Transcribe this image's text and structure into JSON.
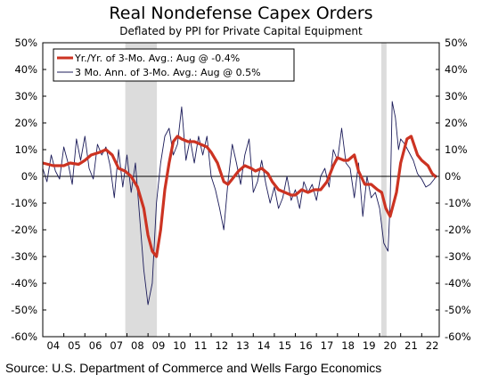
{
  "chart_data": {
    "type": "line",
    "title": "Real Nondefense Capex Orders",
    "subtitle": "Deflated by PPI for Private Capital Equipment",
    "source": "Source: U.S. Department of Commerce and Wells Fargo Economics",
    "ylim": [
      -60,
      50
    ],
    "xlim": [
      2004,
      2022.75
    ],
    "y_tick_labels": [
      "50%",
      "40%",
      "30%",
      "20%",
      "10%",
      "0%",
      "-10%",
      "-20%",
      "-30%",
      "-40%",
      "-50%",
      "-60%"
    ],
    "y_ticks": [
      50,
      40,
      30,
      20,
      10,
      0,
      -10,
      -20,
      -30,
      -40,
      -50,
      -60
    ],
    "x_tick_labels": [
      "04",
      "05",
      "06",
      "07",
      "08",
      "09",
      "10",
      "11",
      "12",
      "13",
      "14",
      "15",
      "16",
      "17",
      "18",
      "19",
      "20",
      "21",
      "22"
    ],
    "recessions": [
      [
        2007.92,
        2009.42
      ],
      [
        2020.08,
        2020.33
      ]
    ],
    "colors": {
      "series_1": "#cc3322",
      "series_2": "#1c1c5a",
      "recession": "#dcdcdc"
    },
    "legend_position": "top-left",
    "series": [
      {
        "name": "Yr./Yr. of 3-Mo. Avg.: Aug @ -0.4%",
        "points": [
          [
            2004.0,
            5
          ],
          [
            2004.5,
            4
          ],
          [
            2005.0,
            4
          ],
          [
            2005.3,
            5
          ],
          [
            2005.7,
            4.5
          ],
          [
            2006.0,
            6
          ],
          [
            2006.3,
            8
          ],
          [
            2006.7,
            9
          ],
          [
            2007.0,
            10
          ],
          [
            2007.3,
            8
          ],
          [
            2007.6,
            3
          ],
          [
            2007.9,
            2
          ],
          [
            2008.2,
            0
          ],
          [
            2008.5,
            -4
          ],
          [
            2008.8,
            -12
          ],
          [
            2009.0,
            -22
          ],
          [
            2009.2,
            -28
          ],
          [
            2009.4,
            -30
          ],
          [
            2009.6,
            -20
          ],
          [
            2009.8,
            -5
          ],
          [
            2010.0,
            5
          ],
          [
            2010.2,
            13
          ],
          [
            2010.4,
            15
          ],
          [
            2010.6,
            14
          ],
          [
            2010.9,
            13
          ],
          [
            2011.2,
            13
          ],
          [
            2011.5,
            12
          ],
          [
            2011.8,
            11
          ],
          [
            2012.0,
            9
          ],
          [
            2012.3,
            5
          ],
          [
            2012.6,
            -2
          ],
          [
            2012.8,
            -3
          ],
          [
            2013.0,
            -1
          ],
          [
            2013.3,
            2
          ],
          [
            2013.6,
            4
          ],
          [
            2013.9,
            3
          ],
          [
            2014.1,
            2
          ],
          [
            2014.4,
            3
          ],
          [
            2014.7,
            1
          ],
          [
            2014.9,
            -2
          ],
          [
            2015.2,
            -5
          ],
          [
            2015.5,
            -6
          ],
          [
            2015.8,
            -7
          ],
          [
            2016.0,
            -7
          ],
          [
            2016.3,
            -5
          ],
          [
            2016.6,
            -6
          ],
          [
            2016.9,
            -5
          ],
          [
            2017.2,
            -5
          ],
          [
            2017.5,
            -2
          ],
          [
            2017.8,
            4
          ],
          [
            2018.0,
            7
          ],
          [
            2018.3,
            6
          ],
          [
            2018.5,
            6
          ],
          [
            2018.8,
            8
          ],
          [
            2019.0,
            2
          ],
          [
            2019.3,
            -3
          ],
          [
            2019.6,
            -3
          ],
          [
            2019.9,
            -5
          ],
          [
            2020.1,
            -6
          ],
          [
            2020.3,
            -12
          ],
          [
            2020.5,
            -15
          ],
          [
            2020.8,
            -6
          ],
          [
            2021.0,
            5
          ],
          [
            2021.3,
            14
          ],
          [
            2021.5,
            15
          ],
          [
            2021.8,
            8
          ],
          [
            2022.0,
            6
          ],
          [
            2022.3,
            4
          ],
          [
            2022.5,
            1
          ],
          [
            2022.7,
            -0.4
          ]
        ]
      },
      {
        "name": "3 Mo. Ann. of 3-Mo. Avg.: Aug @ 0.5%",
        "points": [
          [
            2004.0,
            3
          ],
          [
            2004.2,
            -2
          ],
          [
            2004.4,
            8
          ],
          [
            2004.6,
            2
          ],
          [
            2004.8,
            -1
          ],
          [
            2005.0,
            11
          ],
          [
            2005.2,
            5
          ],
          [
            2005.4,
            -3
          ],
          [
            2005.6,
            14
          ],
          [
            2005.8,
            6
          ],
          [
            2006.0,
            15
          ],
          [
            2006.2,
            3
          ],
          [
            2006.4,
            -1
          ],
          [
            2006.6,
            12
          ],
          [
            2006.8,
            8
          ],
          [
            2007.0,
            11
          ],
          [
            2007.2,
            4
          ],
          [
            2007.4,
            -8
          ],
          [
            2007.6,
            10
          ],
          [
            2007.8,
            -4
          ],
          [
            2008.0,
            8
          ],
          [
            2008.2,
            -6
          ],
          [
            2008.4,
            5
          ],
          [
            2008.6,
            -15
          ],
          [
            2008.8,
            -35
          ],
          [
            2009.0,
            -48
          ],
          [
            2009.2,
            -40
          ],
          [
            2009.4,
            -10
          ],
          [
            2009.6,
            5
          ],
          [
            2009.8,
            15
          ],
          [
            2010.0,
            18
          ],
          [
            2010.2,
            8
          ],
          [
            2010.4,
            12
          ],
          [
            2010.6,
            26
          ],
          [
            2010.8,
            6
          ],
          [
            2011.0,
            14
          ],
          [
            2011.2,
            5
          ],
          [
            2011.4,
            15
          ],
          [
            2011.6,
            8
          ],
          [
            2011.8,
            15
          ],
          [
            2012.0,
            0
          ],
          [
            2012.2,
            -5
          ],
          [
            2012.4,
            -12
          ],
          [
            2012.6,
            -20
          ],
          [
            2012.8,
            -2
          ],
          [
            2013.0,
            12
          ],
          [
            2013.2,
            5
          ],
          [
            2013.4,
            -3
          ],
          [
            2013.6,
            8
          ],
          [
            2013.8,
            14
          ],
          [
            2014.0,
            -6
          ],
          [
            2014.2,
            -2
          ],
          [
            2014.4,
            6
          ],
          [
            2014.6,
            -3
          ],
          [
            2014.8,
            -10
          ],
          [
            2015.0,
            -4
          ],
          [
            2015.2,
            -12
          ],
          [
            2015.4,
            -8
          ],
          [
            2015.6,
            0
          ],
          [
            2015.8,
            -9
          ],
          [
            2016.0,
            -5
          ],
          [
            2016.2,
            -12
          ],
          [
            2016.4,
            -2
          ],
          [
            2016.6,
            -6
          ],
          [
            2016.8,
            -3
          ],
          [
            2017.0,
            -9
          ],
          [
            2017.2,
            0
          ],
          [
            2017.4,
            3
          ],
          [
            2017.6,
            -4
          ],
          [
            2017.8,
            10
          ],
          [
            2018.0,
            6
          ],
          [
            2018.2,
            18
          ],
          [
            2018.4,
            5
          ],
          [
            2018.6,
            3
          ],
          [
            2018.8,
            -8
          ],
          [
            2019.0,
            5
          ],
          [
            2019.2,
            -15
          ],
          [
            2019.4,
            0
          ],
          [
            2019.6,
            -8
          ],
          [
            2019.8,
            -6
          ],
          [
            2020.0,
            -12
          ],
          [
            2020.2,
            -25
          ],
          [
            2020.4,
            -28
          ],
          [
            2020.5,
            -10
          ],
          [
            2020.6,
            28
          ],
          [
            2020.75,
            22
          ],
          [
            2020.9,
            10
          ],
          [
            2021.0,
            14
          ],
          [
            2021.2,
            12
          ],
          [
            2021.4,
            9
          ],
          [
            2021.6,
            6
          ],
          [
            2021.8,
            1
          ],
          [
            2022.0,
            -1
          ],
          [
            2022.2,
            -4
          ],
          [
            2022.4,
            -3
          ],
          [
            2022.6,
            -1
          ],
          [
            2022.7,
            0.5
          ]
        ]
      }
    ]
  }
}
